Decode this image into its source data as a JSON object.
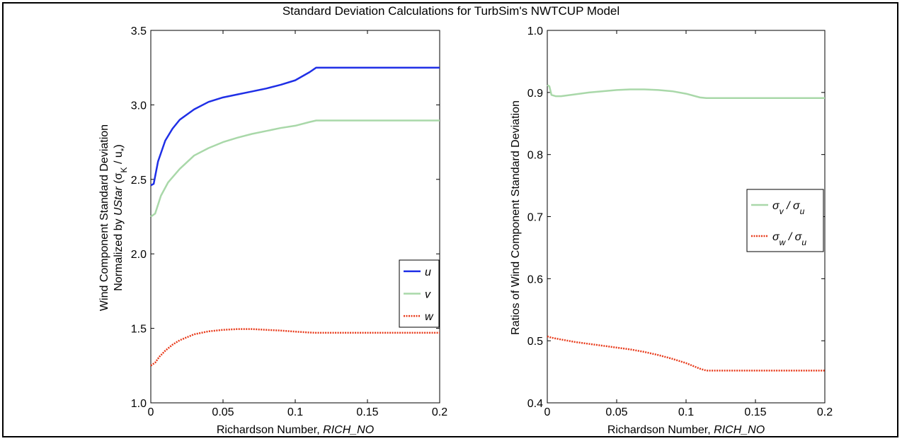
{
  "title": "Standard Deviation Calculations for TurbSim's NWTCUP Model",
  "chart_data": [
    {
      "type": "line",
      "title": "",
      "xlabel_text": "Richardson Number, ",
      "xlabel_var": "RICH_NO",
      "ylabel_line1": "Wind Component Standard Deviation",
      "ylabel_line2_text": "Normalized by ",
      "ylabel_line2_var": "UStar",
      "ylabel_line2_sym": "(σ",
      "ylabel_line2_sub": "K",
      "ylabel_line2_rest": " / u",
      "ylabel_line2_sub2": "*",
      "ylabel_line2_close": ")",
      "xlim": [
        0,
        0.2
      ],
      "ylim": [
        1.0,
        3.5
      ],
      "xticks": [
        "0",
        "0.05",
        "0.1",
        "0.15",
        "0.2"
      ],
      "xtick_values": [
        0,
        0.05,
        0.1,
        0.15,
        0.2
      ],
      "yticks": [
        "1.0",
        "1.5",
        "2.0",
        "2.5",
        "3.0",
        "3.5"
      ],
      "ytick_values": [
        1.0,
        1.5,
        2.0,
        2.5,
        3.0,
        3.5
      ],
      "legend_position": "right",
      "series": [
        {
          "name": "u",
          "color": "#1f2fe6",
          "style": "solid",
          "x": [
            0,
            0.002,
            0.005,
            0.01,
            0.015,
            0.02,
            0.03,
            0.04,
            0.05,
            0.06,
            0.07,
            0.08,
            0.09,
            0.1,
            0.11,
            0.1145,
            0.13,
            0.15,
            0.17,
            0.2
          ],
          "y": [
            2.46,
            2.47,
            2.62,
            2.76,
            2.84,
            2.9,
            2.97,
            3.02,
            3.05,
            3.07,
            3.09,
            3.11,
            3.135,
            3.165,
            3.22,
            3.25,
            3.25,
            3.25,
            3.25,
            3.25
          ]
        },
        {
          "name": "v",
          "color": "#a9d8a9",
          "style": "solid",
          "x": [
            0,
            0.003,
            0.007,
            0.012,
            0.02,
            0.03,
            0.04,
            0.05,
            0.06,
            0.07,
            0.08,
            0.09,
            0.1,
            0.11,
            0.1145,
            0.13,
            0.15,
            0.17,
            0.2
          ],
          "y": [
            2.25,
            2.27,
            2.39,
            2.48,
            2.57,
            2.66,
            2.71,
            2.75,
            2.78,
            2.805,
            2.825,
            2.845,
            2.86,
            2.885,
            2.895,
            2.895,
            2.895,
            2.895,
            2.895
          ]
        },
        {
          "name": "w",
          "color": "#e83a1a",
          "style": "dotted",
          "x": [
            0,
            0.003,
            0.006,
            0.01,
            0.015,
            0.02,
            0.03,
            0.04,
            0.05,
            0.06,
            0.07,
            0.08,
            0.09,
            0.1,
            0.11,
            0.1145,
            0.13,
            0.15,
            0.17,
            0.2
          ],
          "y": [
            1.25,
            1.27,
            1.31,
            1.35,
            1.39,
            1.42,
            1.46,
            1.48,
            1.49,
            1.495,
            1.495,
            1.49,
            1.485,
            1.478,
            1.472,
            1.47,
            1.47,
            1.47,
            1.47,
            1.47
          ]
        }
      ]
    },
    {
      "type": "line",
      "title": "",
      "xlabel_text": "Richardson Number, ",
      "xlabel_var": "RICH_NO",
      "ylabel": "Ratios of Wind Component Standard Deviation",
      "xlim": [
        0,
        0.2
      ],
      "ylim": [
        0.4,
        1.0
      ],
      "xticks": [
        "0",
        "0.05",
        "0.1",
        "0.15",
        "0.2"
      ],
      "xtick_values": [
        0,
        0.05,
        0.1,
        0.15,
        0.2
      ],
      "yticks": [
        "0.4",
        "0.5",
        "0.6",
        "0.7",
        "0.8",
        "0.9",
        "1.0"
      ],
      "ytick_values": [
        0.4,
        0.5,
        0.6,
        0.7,
        0.8,
        0.9,
        1.0
      ],
      "legend_position": "right",
      "series": [
        {
          "name_sym": "σ",
          "name_sub": "v",
          "name_mid": " / σ",
          "name_sub2": "u",
          "color": "#a9d8a9",
          "style": "solid",
          "x": [
            0,
            0.0015,
            0.003,
            0.006,
            0.01,
            0.02,
            0.03,
            0.04,
            0.05,
            0.06,
            0.07,
            0.08,
            0.09,
            0.1,
            0.11,
            0.1145,
            0.13,
            0.15,
            0.17,
            0.2
          ],
          "y": [
            0.912,
            0.91,
            0.896,
            0.894,
            0.894,
            0.897,
            0.9,
            0.902,
            0.904,
            0.905,
            0.905,
            0.904,
            0.902,
            0.898,
            0.892,
            0.891,
            0.891,
            0.891,
            0.891,
            0.891
          ]
        },
        {
          "name_sym": "σ",
          "name_sub": "w",
          "name_mid": " / σ",
          "name_sub2": "u",
          "color": "#e83a1a",
          "style": "dotted",
          "x": [
            0,
            0.003,
            0.01,
            0.02,
            0.03,
            0.04,
            0.05,
            0.06,
            0.07,
            0.08,
            0.09,
            0.1,
            0.11,
            0.1145,
            0.13,
            0.15,
            0.17,
            0.2
          ],
          "y": [
            0.507,
            0.505,
            0.502,
            0.498,
            0.495,
            0.492,
            0.489,
            0.486,
            0.482,
            0.477,
            0.471,
            0.464,
            0.455,
            0.452,
            0.452,
            0.452,
            0.452,
            0.452
          ]
        }
      ]
    }
  ]
}
